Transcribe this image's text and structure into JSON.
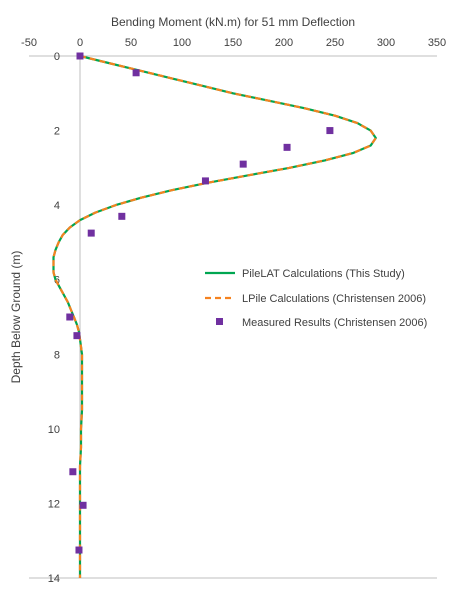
{
  "chart_data": {
    "type": "line",
    "title": "",
    "xlabel": "Bending Moment (kN.m) for 51 mm Deflection",
    "ylabel": "Depth Below Ground (m)",
    "xlim": [
      -50,
      350
    ],
    "ylim": [
      0,
      14
    ],
    "y_inverted": true,
    "x_axis_position": "top",
    "x_ticks": [
      -50,
      0,
      50,
      100,
      150,
      200,
      250,
      300,
      350
    ],
    "y_ticks": [
      0,
      2,
      4,
      6,
      8,
      10,
      12,
      14
    ],
    "x_tick_labels": [
      "-50",
      "0",
      "50",
      "100",
      "150",
      "200",
      "250",
      "300",
      "350"
    ],
    "y_tick_labels": [
      "0",
      "2",
      "4",
      "6",
      "8",
      "10",
      "12",
      "14"
    ],
    "grid": false,
    "legend_position": "center-right",
    "series": [
      {
        "name": "PileLAT Calculations (This Study)",
        "style": "solid",
        "color": "#00a651",
        "points": [
          [
            0,
            0
          ],
          [
            30,
            0.2
          ],
          [
            60,
            0.4
          ],
          [
            90,
            0.6
          ],
          [
            120,
            0.8
          ],
          [
            150,
            1.0
          ],
          [
            185,
            1.2
          ],
          [
            220,
            1.4
          ],
          [
            250,
            1.6
          ],
          [
            272,
            1.8
          ],
          [
            285,
            2.0
          ],
          [
            290,
            2.2
          ],
          [
            285,
            2.4
          ],
          [
            268,
            2.6
          ],
          [
            240,
            2.8
          ],
          [
            205,
            3.0
          ],
          [
            165,
            3.2
          ],
          [
            125,
            3.4
          ],
          [
            90,
            3.6
          ],
          [
            60,
            3.8
          ],
          [
            35,
            4.0
          ],
          [
            15,
            4.2
          ],
          [
            0,
            4.4
          ],
          [
            -10,
            4.6
          ],
          [
            -17,
            4.8
          ],
          [
            -21,
            5.0
          ],
          [
            -24,
            5.2
          ],
          [
            -26,
            5.4
          ],
          [
            -26,
            5.6
          ],
          [
            -26,
            5.8
          ],
          [
            -24,
            6.0
          ],
          [
            -20,
            6.2
          ],
          [
            -16,
            6.4
          ],
          [
            -12,
            6.6
          ],
          [
            -9,
            6.8
          ],
          [
            -6,
            7.0
          ],
          [
            -3,
            7.2
          ],
          [
            -1,
            7.4
          ],
          [
            0,
            7.6
          ],
          [
            1,
            7.8
          ],
          [
            2,
            8.0
          ],
          [
            2,
            8.5
          ],
          [
            2,
            9.0
          ],
          [
            2,
            9.5
          ],
          [
            1,
            10.0
          ],
          [
            1,
            10.5
          ],
          [
            0,
            11.0
          ],
          [
            0,
            11.5
          ],
          [
            0,
            12.0
          ],
          [
            0,
            12.5
          ],
          [
            0,
            13.0
          ],
          [
            0,
            13.5
          ],
          [
            0,
            14.0
          ]
        ]
      },
      {
        "name": "LPile Calculations (Christensen 2006)",
        "style": "dashed",
        "color": "#f58220",
        "points": [
          [
            0,
            0
          ],
          [
            30,
            0.2
          ],
          [
            60,
            0.4
          ],
          [
            90,
            0.6
          ],
          [
            120,
            0.8
          ],
          [
            150,
            1.0
          ],
          [
            185,
            1.2
          ],
          [
            220,
            1.4
          ],
          [
            250,
            1.6
          ],
          [
            272,
            1.8
          ],
          [
            285,
            2.0
          ],
          [
            290,
            2.2
          ],
          [
            285,
            2.4
          ],
          [
            268,
            2.6
          ],
          [
            240,
            2.8
          ],
          [
            205,
            3.0
          ],
          [
            165,
            3.2
          ],
          [
            125,
            3.4
          ],
          [
            90,
            3.6
          ],
          [
            60,
            3.8
          ],
          [
            35,
            4.0
          ],
          [
            15,
            4.2
          ],
          [
            0,
            4.4
          ],
          [
            -10,
            4.6
          ],
          [
            -17,
            4.8
          ],
          [
            -21,
            5.0
          ],
          [
            -24,
            5.2
          ],
          [
            -26,
            5.4
          ],
          [
            -26,
            5.6
          ],
          [
            -26,
            5.8
          ],
          [
            -24,
            6.0
          ],
          [
            -20,
            6.2
          ],
          [
            -16,
            6.4
          ],
          [
            -12,
            6.6
          ],
          [
            -9,
            6.8
          ],
          [
            -6,
            7.0
          ],
          [
            -3,
            7.2
          ],
          [
            -1,
            7.4
          ],
          [
            0,
            7.6
          ],
          [
            1,
            7.8
          ],
          [
            2,
            8.0
          ],
          [
            2,
            8.5
          ],
          [
            2,
            9.0
          ],
          [
            2,
            9.5
          ],
          [
            1,
            10.0
          ],
          [
            1,
            10.5
          ],
          [
            0,
            11.0
          ],
          [
            0,
            11.5
          ],
          [
            0,
            12.0
          ],
          [
            0,
            12.5
          ],
          [
            0,
            13.0
          ],
          [
            0,
            13.5
          ],
          [
            0,
            14.0
          ]
        ]
      },
      {
        "name": "Measured Results (Christensen 2006)",
        "style": "markers",
        "marker": "square",
        "color": "#7030a0",
        "points": [
          [
            0,
            0
          ],
          [
            55,
            0.45
          ],
          [
            245,
            2.0
          ],
          [
            203,
            2.45
          ],
          [
            160,
            2.9
          ],
          [
            123,
            3.35
          ],
          [
            41,
            4.3
          ],
          [
            11,
            4.75
          ],
          [
            -10,
            7.0
          ],
          [
            -3,
            7.5
          ],
          [
            -7,
            11.15
          ],
          [
            3,
            12.05
          ],
          [
            -1,
            13.25
          ]
        ]
      }
    ]
  }
}
